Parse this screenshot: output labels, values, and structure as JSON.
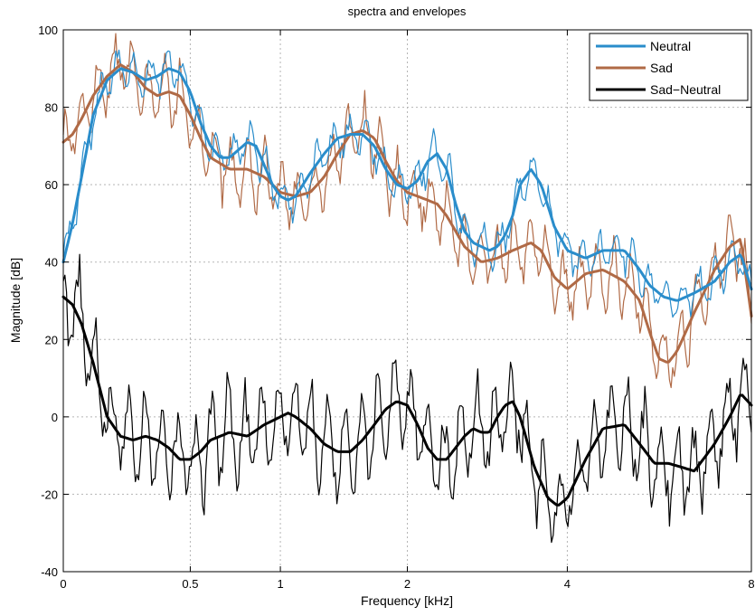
{
  "chart_data": {
    "type": "line",
    "title": "spectra and envelopes",
    "xlabel": "Frequency [kHz]",
    "ylabel": "Magnitude [dB]",
    "x_scale": "log",
    "xlim": [
      0,
      8
    ],
    "ylim": [
      -40,
      100
    ],
    "grid": true,
    "legend_position": "top-right",
    "x_ticks": [
      {
        "value": 0,
        "label": "0"
      },
      {
        "value": 0.5,
        "label": "0.5"
      },
      {
        "value": 1,
        "label": "1"
      },
      {
        "value": 2,
        "label": "2"
      },
      {
        "value": 4,
        "label": "4"
      },
      {
        "value": 8,
        "label": "8"
      }
    ],
    "y_ticks": [
      {
        "value": -40,
        "label": "-40"
      },
      {
        "value": -20,
        "label": "-20"
      },
      {
        "value": 0,
        "label": "0"
      },
      {
        "value": 20,
        "label": "20"
      },
      {
        "value": 40,
        "label": "40"
      },
      {
        "value": 60,
        "label": "60"
      },
      {
        "value": 80,
        "label": "80"
      },
      {
        "value": 100,
        "label": "100"
      }
    ],
    "legend": [
      {
        "label": "Neutral",
        "color": "#2a8dcb"
      },
      {
        "label": "Sad",
        "color": "#b06a46"
      },
      {
        "label": "Sad−Neutral",
        "color": "#000000"
      }
    ],
    "series": [
      {
        "name": "Neutral",
        "role": "envelope",
        "color": "#2a8dcb",
        "width": 3,
        "points": [
          [
            0,
            40
          ],
          [
            0.03,
            50
          ],
          [
            0.06,
            62
          ],
          [
            0.1,
            78
          ],
          [
            0.15,
            87
          ],
          [
            0.2,
            90
          ],
          [
            0.25,
            89
          ],
          [
            0.3,
            87
          ],
          [
            0.35,
            88
          ],
          [
            0.4,
            90
          ],
          [
            0.45,
            89
          ],
          [
            0.5,
            84
          ],
          [
            0.55,
            76
          ],
          [
            0.6,
            70
          ],
          [
            0.65,
            67
          ],
          [
            0.7,
            67
          ],
          [
            0.75,
            69
          ],
          [
            0.8,
            71
          ],
          [
            0.85,
            70
          ],
          [
            0.9,
            65
          ],
          [
            0.95,
            60
          ],
          [
            1.0,
            57
          ],
          [
            1.05,
            56
          ],
          [
            1.1,
            57
          ],
          [
            1.2,
            63
          ],
          [
            1.3,
            68
          ],
          [
            1.4,
            72
          ],
          [
            1.5,
            73
          ],
          [
            1.6,
            73
          ],
          [
            1.7,
            70
          ],
          [
            1.8,
            64
          ],
          [
            1.9,
            60
          ],
          [
            2.0,
            59
          ],
          [
            2.1,
            61
          ],
          [
            2.2,
            66
          ],
          [
            2.3,
            68
          ],
          [
            2.4,
            64
          ],
          [
            2.5,
            55
          ],
          [
            2.6,
            48
          ],
          [
            2.7,
            45
          ],
          [
            2.8,
            44
          ],
          [
            2.9,
            43
          ],
          [
            3.0,
            44
          ],
          [
            3.1,
            47
          ],
          [
            3.2,
            52
          ],
          [
            3.3,
            60
          ],
          [
            3.45,
            64
          ],
          [
            3.6,
            60
          ],
          [
            3.8,
            49
          ],
          [
            4.0,
            43
          ],
          [
            4.3,
            41
          ],
          [
            4.6,
            43
          ],
          [
            5.0,
            43
          ],
          [
            5.3,
            38
          ],
          [
            5.5,
            34
          ],
          [
            5.8,
            31
          ],
          [
            6.1,
            30
          ],
          [
            6.5,
            32
          ],
          [
            7.0,
            35
          ],
          [
            7.4,
            40
          ],
          [
            7.7,
            42
          ],
          [
            8.0,
            33
          ]
        ]
      },
      {
        "name": "Sad",
        "role": "envelope",
        "color": "#b06a46",
        "width": 3,
        "points": [
          [
            0,
            71
          ],
          [
            0.03,
            73
          ],
          [
            0.06,
            77
          ],
          [
            0.1,
            83
          ],
          [
            0.15,
            88
          ],
          [
            0.2,
            91
          ],
          [
            0.25,
            89
          ],
          [
            0.3,
            85
          ],
          [
            0.35,
            83
          ],
          [
            0.4,
            84
          ],
          [
            0.45,
            83
          ],
          [
            0.5,
            78
          ],
          [
            0.55,
            72
          ],
          [
            0.6,
            67
          ],
          [
            0.7,
            64
          ],
          [
            0.8,
            64
          ],
          [
            0.9,
            62
          ],
          [
            1.0,
            58
          ],
          [
            1.1,
            57
          ],
          [
            1.2,
            58
          ],
          [
            1.3,
            62
          ],
          [
            1.4,
            68
          ],
          [
            1.5,
            73
          ],
          [
            1.6,
            74
          ],
          [
            1.7,
            72
          ],
          [
            1.8,
            66
          ],
          [
            1.9,
            61
          ],
          [
            2.0,
            58
          ],
          [
            2.1,
            57
          ],
          [
            2.2,
            56
          ],
          [
            2.3,
            55
          ],
          [
            2.4,
            52
          ],
          [
            2.5,
            48
          ],
          [
            2.6,
            44
          ],
          [
            2.8,
            40
          ],
          [
            3.0,
            41
          ],
          [
            3.2,
            43
          ],
          [
            3.45,
            45
          ],
          [
            3.6,
            43
          ],
          [
            3.8,
            36
          ],
          [
            4.0,
            33
          ],
          [
            4.3,
            37
          ],
          [
            4.6,
            38
          ],
          [
            5.0,
            35
          ],
          [
            5.3,
            30
          ],
          [
            5.5,
            22
          ],
          [
            5.7,
            15
          ],
          [
            5.9,
            14
          ],
          [
            6.1,
            17
          ],
          [
            6.5,
            27
          ],
          [
            7.0,
            38
          ],
          [
            7.4,
            44
          ],
          [
            7.7,
            46
          ],
          [
            8.0,
            26
          ]
        ]
      },
      {
        "name": "Sad−Neutral",
        "role": "envelope",
        "color": "#000000",
        "width": 3,
        "points": [
          [
            0,
            31
          ],
          [
            0.03,
            29
          ],
          [
            0.06,
            24
          ],
          [
            0.1,
            14
          ],
          [
            0.15,
            0
          ],
          [
            0.2,
            -5
          ],
          [
            0.25,
            -6
          ],
          [
            0.3,
            -5
          ],
          [
            0.35,
            -6
          ],
          [
            0.4,
            -8
          ],
          [
            0.45,
            -11
          ],
          [
            0.5,
            -11
          ],
          [
            0.55,
            -9
          ],
          [
            0.6,
            -6
          ],
          [
            0.7,
            -4
          ],
          [
            0.8,
            -5
          ],
          [
            0.9,
            -2
          ],
          [
            1.0,
            0
          ],
          [
            1.05,
            1
          ],
          [
            1.1,
            0
          ],
          [
            1.2,
            -3
          ],
          [
            1.3,
            -7
          ],
          [
            1.4,
            -9
          ],
          [
            1.5,
            -9
          ],
          [
            1.6,
            -6
          ],
          [
            1.7,
            -2
          ],
          [
            1.8,
            2
          ],
          [
            1.9,
            4
          ],
          [
            2.0,
            3
          ],
          [
            2.1,
            -2
          ],
          [
            2.2,
            -8
          ],
          [
            2.3,
            -11
          ],
          [
            2.4,
            -11
          ],
          [
            2.5,
            -8
          ],
          [
            2.6,
            -5
          ],
          [
            2.7,
            -3
          ],
          [
            2.8,
            -4
          ],
          [
            2.9,
            -4
          ],
          [
            3.0,
            0
          ],
          [
            3.1,
            3
          ],
          [
            3.2,
            4
          ],
          [
            3.3,
            0
          ],
          [
            3.5,
            -13
          ],
          [
            3.7,
            -21
          ],
          [
            3.85,
            -23
          ],
          [
            4.0,
            -21
          ],
          [
            4.3,
            -11
          ],
          [
            4.6,
            -3
          ],
          [
            5.0,
            -2
          ],
          [
            5.3,
            -7
          ],
          [
            5.6,
            -12
          ],
          [
            5.9,
            -12
          ],
          [
            6.2,
            -13
          ],
          [
            6.5,
            -14
          ],
          [
            7.0,
            -7
          ],
          [
            7.4,
            0
          ],
          [
            7.7,
            6
          ],
          [
            8.0,
            3
          ]
        ]
      }
    ]
  }
}
